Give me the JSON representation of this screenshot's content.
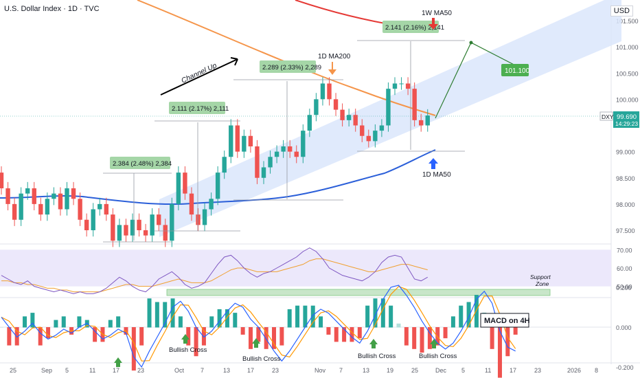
{
  "header": {
    "title": "U.S. Dollar Index · 1D · TVC",
    "currency": "USD"
  },
  "price_tag": {
    "symbol": "DXY",
    "price": "99.690",
    "timer": "14:29:23"
  },
  "price_axis": [
    "101.500",
    "101.000",
    "100.500",
    "100.000",
    "99.000",
    "98.500",
    "98.000",
    "97.500"
  ],
  "rsi_axis": [
    "70.00",
    "60.00",
    "50.00"
  ],
  "macd_axis": [
    "0.200",
    "0.000",
    "-0.200"
  ],
  "time_axis": [
    "25",
    "Sep",
    "5",
    "11",
    "17",
    "23",
    "Oct",
    "7",
    "13",
    "17",
    "23",
    "Nov",
    "7",
    "13",
    "19",
    "25",
    "Dec",
    "5",
    "11",
    "17",
    "23",
    "2026",
    "8"
  ],
  "annotations": {
    "channel": "Channel Up",
    "ma200": "1D MA200",
    "ma50_1w": "1W MA50",
    "ma50_1d": "1D MA50",
    "m1": "2.384 (2.48%) 2,384",
    "m2": "2.111 (2.17%) 2,111",
    "m3": "2.289 (2.33%) 2,289",
    "m4": "2.141 (2.16%) 2,141",
    "target": "101.100",
    "support_zone": [
      "Support",
      "Zone"
    ],
    "macd_label": "MACD on 4H",
    "bullish": "Bullish Cross"
  },
  "colors": {
    "up": "#26a69a",
    "down": "#ef5350",
    "ma50": "#2b5fd9",
    "ma200": "#f5954a",
    "ma50w": "#e53935",
    "channel": "#dbe6fb",
    "rsi_band": "#ece8fb",
    "support": "#c8e6c9",
    "target_box": "#4caf50",
    "arrow_green": "#43a047",
    "arrow_blue": "#2962ff"
  },
  "chart_data": {
    "type": "candlestick",
    "title": "U.S. Dollar Index · 1D · TVC",
    "ylabel": "USD",
    "ylim": [
      97.2,
      101.8
    ],
    "candles_approx": [
      [
        98.6,
        98.3
      ],
      [
        98.3,
        98.0
      ],
      [
        98.0,
        97.7
      ],
      [
        97.7,
        98.2
      ],
      [
        98.2,
        98.3
      ],
      [
        98.3,
        98.0
      ],
      [
        98.0,
        97.8
      ],
      [
        97.8,
        98.1
      ],
      [
        98.1,
        98.2
      ],
      [
        98.2,
        97.9
      ],
      [
        97.9,
        98.3
      ],
      [
        98.3,
        98.1
      ],
      [
        98.1,
        97.7
      ],
      [
        97.7,
        97.5
      ],
      [
        97.5,
        97.9
      ],
      [
        97.9,
        98.0
      ],
      [
        98.0,
        97.8
      ],
      [
        97.8,
        97.3
      ],
      [
        97.3,
        97.6
      ],
      [
        97.6,
        97.4
      ],
      [
        97.4,
        97.7
      ],
      [
        97.7,
        97.5
      ],
      [
        97.5,
        97.4
      ],
      [
        97.4,
        97.8
      ],
      [
        97.8,
        97.6
      ],
      [
        97.6,
        97.3
      ],
      [
        97.3,
        98.0
      ],
      [
        98.0,
        98.6
      ],
      [
        98.6,
        98.2
      ],
      [
        98.2,
        97.8
      ],
      [
        97.8,
        97.6
      ],
      [
        97.6,
        97.9
      ],
      [
        97.9,
        98.1
      ],
      [
        98.1,
        98.6
      ],
      [
        98.6,
        98.9
      ],
      [
        98.9,
        99.5
      ],
      [
        99.5,
        99.0
      ],
      [
        99.0,
        99.3
      ],
      [
        99.3,
        99.1
      ],
      [
        99.1,
        98.5
      ],
      [
        98.5,
        98.7
      ],
      [
        98.7,
        98.9
      ],
      [
        98.9,
        99.0
      ],
      [
        99.0,
        99.1
      ],
      [
        99.1,
        99.0
      ],
      [
        99.0,
        98.9
      ],
      [
        98.9,
        99.4
      ],
      [
        99.4,
        99.7
      ],
      [
        99.7,
        100.0
      ],
      [
        100.0,
        100.3
      ],
      [
        100.3,
        100.0
      ],
      [
        100.0,
        99.8
      ],
      [
        99.8,
        99.6
      ],
      [
        99.6,
        99.7
      ],
      [
        99.7,
        99.5
      ],
      [
        99.5,
        99.3
      ],
      [
        99.3,
        99.2
      ],
      [
        99.2,
        99.4
      ],
      [
        99.4,
        99.5
      ],
      [
        99.5,
        100.2
      ],
      [
        100.2,
        100.3
      ],
      [
        100.3,
        100.3
      ],
      [
        100.3,
        100.2
      ],
      [
        100.2,
        99.6
      ],
      [
        99.6,
        99.5
      ],
      [
        99.5,
        99.69
      ]
    ],
    "ma50_1d_end": 99.03,
    "target": 101.1,
    "rsi_ylim": [
      45,
      72
    ],
    "macd_ylim": [
      -0.27,
      0.27
    ]
  }
}
